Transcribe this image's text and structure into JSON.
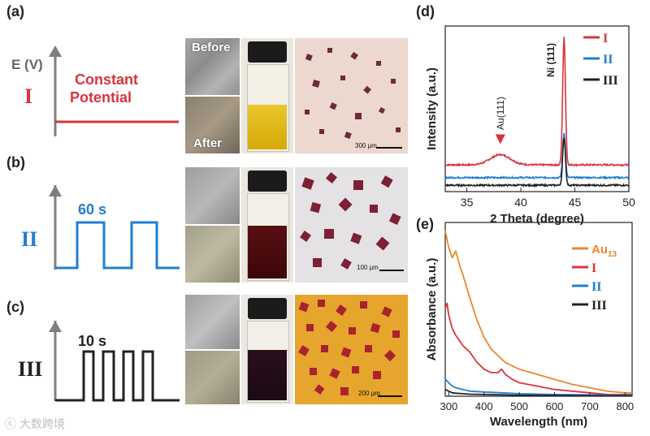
{
  "panels": {
    "a": {
      "label": "(a)",
      "axis_label": "E (V)",
      "roman": "I",
      "text_line1": "Constant",
      "text_line2": "Potential",
      "color": "#d9343d",
      "before": "Before",
      "after": "After",
      "scale": "300 µm"
    },
    "b": {
      "label": "(b)",
      "roman": "II",
      "pulse": "60 s",
      "color": "#1f7fd1",
      "scale": "100 µm"
    },
    "c": {
      "label": "(c)",
      "roman": "III",
      "pulse": "10 s",
      "color": "#222222",
      "scale": "200 µm"
    },
    "d": {
      "label": "(d)"
    },
    "e": {
      "label": "(e)"
    }
  },
  "colors": {
    "I": "#d9343d",
    "II": "#1f7fd1",
    "III": "#222222",
    "Au13": "#e8892b",
    "axis": "#7f7f7f"
  },
  "watermark": "大数跨境",
  "chart_data": [
    {
      "id": "d",
      "type": "line",
      "xlabel": "2 Theta (degree)",
      "ylabel": "Intensity (a.u.)",
      "xlim": [
        33,
        50
      ],
      "xticks": [
        35,
        40,
        45,
        50
      ],
      "annotations": [
        {
          "text": "Au(111)",
          "x": 38.1
        },
        {
          "text": "Ni (111)",
          "x": 44.0
        }
      ],
      "legend": [
        "I",
        "II",
        "III"
      ],
      "series": [
        {
          "name": "I",
          "baseline": 0.42,
          "features": [
            {
              "x": 38.1,
              "height": 0.16,
              "width": 1.3
            },
            {
              "x": 44.0,
              "height": 2.0,
              "width": 0.18
            }
          ]
        },
        {
          "name": "II",
          "baseline": 0.22,
          "features": [
            {
              "x": 44.0,
              "height": 0.7,
              "width": 0.18
            }
          ]
        },
        {
          "name": "III",
          "baseline": 0.1,
          "features": [
            {
              "x": 44.0,
              "height": 0.75,
              "width": 0.18
            }
          ]
        }
      ],
      "ylim": [
        0,
        2.6
      ]
    },
    {
      "id": "e",
      "type": "line",
      "xlabel": "Wavelength (nm)",
      "ylabel": "Absorbance (a.u.)",
      "xlim": [
        290,
        820
      ],
      "xticks": [
        300,
        400,
        500,
        600,
        700,
        800
      ],
      "legend": [
        "Au13",
        "I",
        "II",
        "III"
      ],
      "ylim": [
        0,
        1
      ],
      "series": [
        {
          "name": "Au13",
          "x": [
            290,
            300,
            310,
            320,
            330,
            340,
            360,
            380,
            400,
            420,
            440,
            450,
            460,
            480,
            500,
            550,
            600,
            650,
            700,
            750,
            800,
            820
          ],
          "y": [
            0.98,
            0.88,
            0.82,
            0.86,
            0.78,
            0.72,
            0.58,
            0.45,
            0.35,
            0.28,
            0.24,
            0.22,
            0.2,
            0.18,
            0.16,
            0.13,
            0.1,
            0.07,
            0.05,
            0.03,
            0.02,
            0.02
          ]
        },
        {
          "name": "I",
          "x": [
            290,
            295,
            300,
            310,
            320,
            340,
            360,
            380,
            400,
            420,
            440,
            450,
            460,
            480,
            500,
            550,
            600,
            650,
            700,
            750,
            800,
            820
          ],
          "y": [
            0.52,
            0.55,
            0.48,
            0.4,
            0.36,
            0.3,
            0.26,
            0.2,
            0.16,
            0.14,
            0.14,
            0.16,
            0.13,
            0.1,
            0.08,
            0.06,
            0.04,
            0.03,
            0.02,
            0.01,
            0.01,
            0.01
          ]
        },
        {
          "name": "II",
          "x": [
            290,
            300,
            310,
            320,
            340,
            360,
            400,
            450,
            500,
            600,
            700,
            800,
            820
          ],
          "y": [
            0.1,
            0.08,
            0.06,
            0.05,
            0.04,
            0.03,
            0.025,
            0.02,
            0.015,
            0.01,
            0.008,
            0.006,
            0.006
          ]
        },
        {
          "name": "III",
          "x": [
            290,
            300,
            310,
            320,
            340,
            360,
            400,
            450,
            500,
            600,
            700,
            800,
            820
          ],
          "y": [
            0.04,
            0.03,
            0.02,
            0.018,
            0.015,
            0.012,
            0.01,
            0.008,
            0.006,
            0.004,
            0.003,
            0.002,
            0.002
          ]
        }
      ]
    }
  ]
}
